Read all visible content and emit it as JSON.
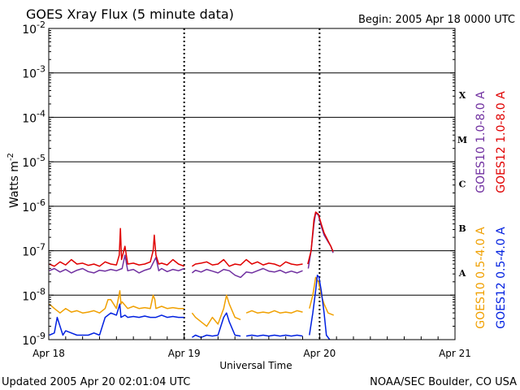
{
  "header": {
    "title": "GOES Xray Flux (5 minute data)",
    "begin": "Begin:  2005 Apr 18 0000 UTC"
  },
  "footer": {
    "updated": "Updated 2005 Apr 20 02:01:04 UTC",
    "credit": "NOAA/SEC Boulder, CO USA"
  },
  "chart_data": {
    "type": "line",
    "title": "GOES Xray Flux (5 minute data)",
    "xlabel": "Universal Time",
    "ylabel": "Watts m",
    "ylabel_exp": "-2",
    "x_unit": "hours since 2005 Apr 18 0000 UTC",
    "xlim": [
      0,
      72
    ],
    "ylim": [
      1e-09,
      0.01
    ],
    "yscale": "log",
    "grid": "horizontal at each decade, dotted vertical at day boundaries",
    "x_ticks": [
      {
        "x": 0,
        "label": "Apr 18"
      },
      {
        "x": 24,
        "label": "Apr 19"
      },
      {
        "x": 48,
        "label": "Apr 20"
      },
      {
        "x": 72,
        "label": "Apr 21"
      }
    ],
    "y_ticks": [
      {
        "exp": -2,
        "base": "10",
        "sup": "-2"
      },
      {
        "exp": -3,
        "base": "10",
        "sup": "-3"
      },
      {
        "exp": -4,
        "base": "10",
        "sup": "-4"
      },
      {
        "exp": -5,
        "base": "10",
        "sup": "-5"
      },
      {
        "exp": -6,
        "base": "10",
        "sup": "-6"
      },
      {
        "exp": -7,
        "base": "10",
        "sup": "-7"
      },
      {
        "exp": -8,
        "base": "10",
        "sup": "-8"
      },
      {
        "exp": -9,
        "base": "10",
        "sup": "-9"
      }
    ],
    "flare_classes": [
      {
        "label": "X",
        "exp": -3.5
      },
      {
        "label": "M",
        "exp": -4.5
      },
      {
        "label": "C",
        "exp": -5.5
      },
      {
        "label": "B",
        "exp": -6.5
      },
      {
        "label": "A",
        "exp": -7.5
      }
    ],
    "legend_right": {
      "top": [
        {
          "text": "GOES10 1.0-8.0 A",
          "color": "#7030a0"
        },
        {
          "text": "GOES12 1.0-8.0 A",
          "color": "#e00000"
        }
      ],
      "bottom": [
        {
          "text": "GOES10 0.5-4.0 A",
          "color": "#f0a000"
        },
        {
          "text": "GOES12 0.5-4.0 A",
          "color": "#0020e0"
        }
      ]
    },
    "series": [
      {
        "name": "GOES10 1.0-8.0 A",
        "color": "#7030a0",
        "segments": [
          [
            [
              0.1,
              -7.45
            ],
            [
              1,
              -7.4
            ],
            [
              2,
              -7.48
            ],
            [
              3,
              -7.42
            ],
            [
              4,
              -7.5
            ],
            [
              5,
              -7.44
            ],
            [
              6,
              -7.4
            ],
            [
              7,
              -7.47
            ],
            [
              8,
              -7.5
            ],
            [
              9,
              -7.44
            ],
            [
              10,
              -7.46
            ],
            [
              11,
              -7.42
            ],
            [
              12,
              -7.45
            ],
            [
              13,
              -7.4
            ],
            [
              13.5,
              -7.1
            ],
            [
              14,
              -7.45
            ],
            [
              15,
              -7.42
            ],
            [
              16,
              -7.5
            ],
            [
              17,
              -7.44
            ],
            [
              18,
              -7.4
            ],
            [
              19,
              -7.15
            ],
            [
              19.5,
              -7.45
            ],
            [
              20,
              -7.4
            ],
            [
              21,
              -7.47
            ],
            [
              22,
              -7.42
            ],
            [
              23,
              -7.45
            ],
            [
              24,
              -7.4
            ]
          ],
          [
            [
              25.4,
              -7.5
            ],
            [
              26,
              -7.44
            ],
            [
              27,
              -7.48
            ],
            [
              28,
              -7.42
            ],
            [
              29,
              -7.46
            ],
            [
              30,
              -7.5
            ],
            [
              31,
              -7.42
            ],
            [
              32,
              -7.45
            ],
            [
              33,
              -7.55
            ],
            [
              34,
              -7.6
            ],
            [
              35,
              -7.48
            ],
            [
              36,
              -7.5
            ],
            [
              37,
              -7.45
            ],
            [
              38,
              -7.4
            ],
            [
              39,
              -7.46
            ],
            [
              40,
              -7.48
            ],
            [
              41,
              -7.44
            ],
            [
              42,
              -7.5
            ],
            [
              43,
              -7.46
            ],
            [
              44,
              -7.5
            ],
            [
              45,
              -7.45
            ]
          ],
          [
            [
              46,
              -7.4
            ],
            [
              46.5,
              -7.0
            ],
            [
              47,
              -6.4
            ],
            [
              47.3,
              -6.15
            ],
            [
              47.8,
              -6.2
            ],
            [
              48.3,
              -6.45
            ],
            [
              48.8,
              -6.65
            ],
            [
              49.5,
              -6.8
            ],
            [
              50,
              -6.9
            ],
            [
              50.4,
              -7.05
            ]
          ]
        ]
      },
      {
        "name": "GOES12 1.0-8.0 A",
        "color": "#e00000",
        "segments": [
          [
            [
              0.1,
              -7.3
            ],
            [
              1,
              -7.35
            ],
            [
              2,
              -7.25
            ],
            [
              3,
              -7.32
            ],
            [
              4,
              -7.2
            ],
            [
              5,
              -7.3
            ],
            [
              6,
              -7.28
            ],
            [
              7,
              -7.33
            ],
            [
              8,
              -7.3
            ],
            [
              9,
              -7.35
            ],
            [
              10,
              -7.25
            ],
            [
              11,
              -7.3
            ],
            [
              12,
              -7.32
            ],
            [
              12.5,
              -7.1
            ],
            [
              12.7,
              -6.5
            ],
            [
              12.9,
              -7.2
            ],
            [
              13.5,
              -6.9
            ],
            [
              14,
              -7.3
            ],
            [
              15,
              -7.28
            ],
            [
              16,
              -7.32
            ],
            [
              17,
              -7.3
            ],
            [
              18,
              -7.25
            ],
            [
              18.5,
              -7.0
            ],
            [
              18.7,
              -6.65
            ],
            [
              19,
              -7.1
            ],
            [
              19.5,
              -7.3
            ],
            [
              20,
              -7.28
            ],
            [
              21,
              -7.32
            ],
            [
              22,
              -7.2
            ],
            [
              23,
              -7.3
            ],
            [
              24,
              -7.35
            ]
          ],
          [
            [
              25.4,
              -7.35
            ],
            [
              26,
              -7.3
            ],
            [
              27,
              -7.28
            ],
            [
              28,
              -7.25
            ],
            [
              29,
              -7.32
            ],
            [
              30,
              -7.3
            ],
            [
              31,
              -7.2
            ],
            [
              32,
              -7.35
            ],
            [
              33,
              -7.3
            ],
            [
              34,
              -7.32
            ],
            [
              35,
              -7.2
            ],
            [
              36,
              -7.3
            ],
            [
              37,
              -7.25
            ],
            [
              38,
              -7.32
            ],
            [
              39,
              -7.28
            ],
            [
              40,
              -7.3
            ],
            [
              41,
              -7.35
            ],
            [
              42,
              -7.25
            ],
            [
              43,
              -7.3
            ],
            [
              44,
              -7.32
            ],
            [
              45,
              -7.3
            ]
          ],
          [
            [
              45.9,
              -7.3
            ],
            [
              46.5,
              -7.0
            ],
            [
              47,
              -6.3
            ],
            [
              47.3,
              -6.13
            ],
            [
              47.8,
              -6.18
            ],
            [
              48.3,
              -6.4
            ],
            [
              48.8,
              -6.6
            ],
            [
              49.5,
              -6.78
            ],
            [
              50,
              -6.9
            ],
            [
              50.4,
              -7.02
            ]
          ]
        ]
      },
      {
        "name": "GOES10 0.5-4.0 A",
        "color": "#f0a000",
        "segments": [
          [
            [
              0.1,
              -8.2
            ],
            [
              1,
              -8.3
            ],
            [
              2,
              -8.4
            ],
            [
              3,
              -8.3
            ],
            [
              4,
              -8.38
            ],
            [
              5,
              -8.35
            ],
            [
              6,
              -8.4
            ],
            [
              7,
              -8.38
            ],
            [
              8,
              -8.35
            ],
            [
              9,
              -8.4
            ],
            [
              10,
              -8.3
            ],
            [
              10.5,
              -8.1
            ],
            [
              11,
              -8.1
            ],
            [
              12,
              -8.3
            ],
            [
              12.6,
              -7.9
            ],
            [
              12.8,
              -8.2
            ],
            [
              13,
              -8.15
            ],
            [
              14,
              -8.3
            ],
            [
              15,
              -8.25
            ],
            [
              16,
              -8.3
            ],
            [
              17,
              -8.28
            ],
            [
              18,
              -8.3
            ],
            [
              18.5,
              -8.0
            ],
            [
              18.8,
              -8.1
            ],
            [
              19,
              -8.3
            ],
            [
              20,
              -8.25
            ],
            [
              21,
              -8.3
            ],
            [
              22,
              -8.28
            ],
            [
              23,
              -8.3
            ],
            [
              24,
              -8.3
            ]
          ],
          [
            [
              25.4,
              -8.4
            ],
            [
              26,
              -8.5
            ],
            [
              27,
              -8.6
            ],
            [
              28,
              -8.7
            ],
            [
              29,
              -8.5
            ],
            [
              30,
              -8.65
            ],
            [
              31,
              -8.3
            ],
            [
              31.5,
              -8.0
            ],
            [
              32,
              -8.2
            ],
            [
              33,
              -8.5
            ],
            [
              34,
              -8.55
            ]
          ],
          [
            [
              35,
              -8.4
            ],
            [
              36,
              -8.35
            ],
            [
              37,
              -8.4
            ],
            [
              38,
              -8.38
            ],
            [
              39,
              -8.4
            ],
            [
              40,
              -8.35
            ],
            [
              41,
              -8.4
            ],
            [
              42,
              -8.38
            ],
            [
              43,
              -8.4
            ],
            [
              44,
              -8.35
            ],
            [
              45,
              -8.38
            ]
          ],
          [
            [
              46.2,
              -8.3
            ],
            [
              46.8,
              -8.0
            ],
            [
              47.3,
              -7.6
            ],
            [
              47.8,
              -7.7
            ],
            [
              48.3,
              -8.0
            ],
            [
              48.8,
              -8.2
            ],
            [
              49.5,
              -8.4
            ],
            [
              50.5,
              -8.45
            ]
          ]
        ]
      },
      {
        "name": "GOES12 0.5-4.0 A",
        "color": "#0020e0",
        "segments": [
          [
            [
              0.1,
              -8.9
            ],
            [
              1,
              -8.85
            ],
            [
              1.5,
              -8.5
            ],
            [
              2,
              -8.7
            ],
            [
              2.5,
              -8.9
            ],
            [
              3,
              -8.8
            ],
            [
              4,
              -8.85
            ],
            [
              5,
              -8.9
            ],
            [
              6,
              -8.9
            ],
            [
              7,
              -8.9
            ],
            [
              8,
              -8.85
            ],
            [
              9,
              -8.9
            ],
            [
              10,
              -8.5
            ],
            [
              11,
              -8.4
            ],
            [
              12,
              -8.45
            ],
            [
              12.6,
              -8.2
            ],
            [
              12.8,
              -8.5
            ],
            [
              13.5,
              -8.45
            ],
            [
              14,
              -8.5
            ],
            [
              15,
              -8.48
            ],
            [
              16,
              -8.5
            ],
            [
              17,
              -8.47
            ],
            [
              18,
              -8.5
            ],
            [
              19,
              -8.5
            ],
            [
              20,
              -8.45
            ],
            [
              21,
              -8.5
            ],
            [
              22,
              -8.48
            ],
            [
              23,
              -8.5
            ],
            [
              24,
              -8.5
            ]
          ],
          [
            [
              25.4,
              -8.95
            ],
            [
              26,
              -8.9
            ],
            [
              27,
              -8.95
            ],
            [
              28,
              -8.9
            ],
            [
              29,
              -8.92
            ],
            [
              30,
              -8.9
            ],
            [
              31,
              -8.5
            ],
            [
              31.5,
              -8.4
            ],
            [
              32,
              -8.6
            ],
            [
              33,
              -8.9
            ],
            [
              34,
              -8.92
            ]
          ],
          [
            [
              35,
              -8.92
            ],
            [
              36,
              -8.9
            ],
            [
              37,
              -8.92
            ],
            [
              38,
              -8.9
            ],
            [
              39,
              -8.92
            ],
            [
              40,
              -8.9
            ],
            [
              41,
              -8.92
            ],
            [
              42,
              -8.9
            ],
            [
              43,
              -8.92
            ],
            [
              44,
              -8.9
            ],
            [
              45,
              -8.92
            ]
          ],
          [
            [
              46.2,
              -8.9
            ],
            [
              46.8,
              -8.4
            ],
            [
              47.3,
              -7.9
            ],
            [
              47.6,
              -7.55
            ],
            [
              47.9,
              -7.6
            ],
            [
              48.3,
              -7.9
            ],
            [
              48.8,
              -8.4
            ],
            [
              49.2,
              -8.9
            ],
            [
              49.8,
              -9.0
            ]
          ]
        ]
      }
    ]
  }
}
